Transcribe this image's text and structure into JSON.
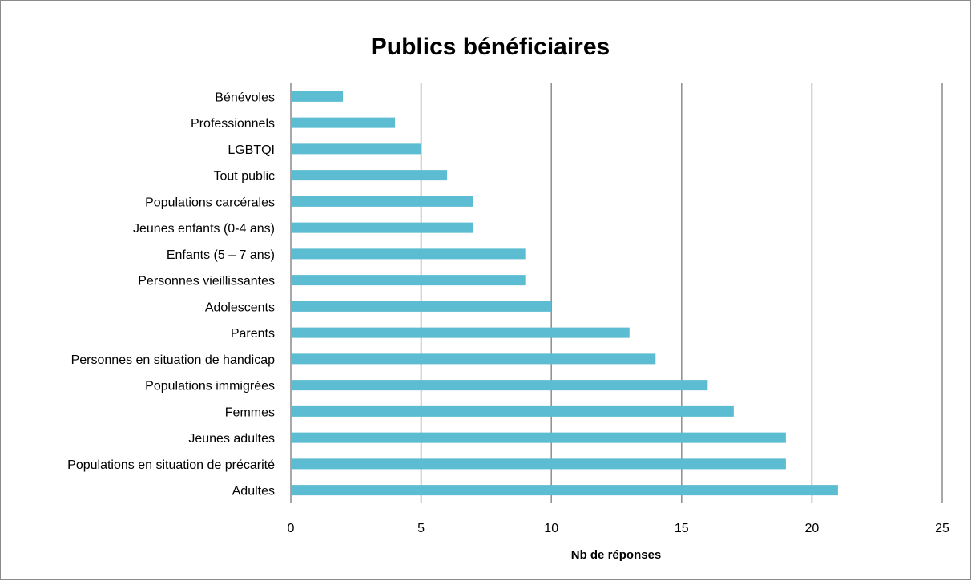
{
  "chart_data": {
    "type": "bar",
    "orientation": "horizontal",
    "title": "Publics bénéficiaires",
    "xlabel": "Nb de réponses",
    "ylabel": "",
    "xlim": [
      0,
      25
    ],
    "xticks": [
      0,
      5,
      10,
      15,
      20,
      25
    ],
    "grid": true,
    "legend": "none",
    "bar_color": "#5bbcd2",
    "categories": [
      "Bénévoles",
      "Professionnels",
      "LGBTQI",
      "Tout public",
      "Populations carcérales",
      "Jeunes enfants (0-4 ans)",
      "Enfants (5 – 7 ans)",
      "Personnes vieillissantes",
      "Adolescents",
      "Parents",
      "Personnes en situation de handicap",
      "Populations immigrées",
      "Femmes",
      "Jeunes adultes",
      "Populations en situation de précarité",
      "Adultes"
    ],
    "values": [
      2,
      4,
      5,
      6,
      7,
      7,
      9,
      9,
      10,
      13,
      14,
      16,
      17,
      19,
      19,
      21
    ]
  }
}
